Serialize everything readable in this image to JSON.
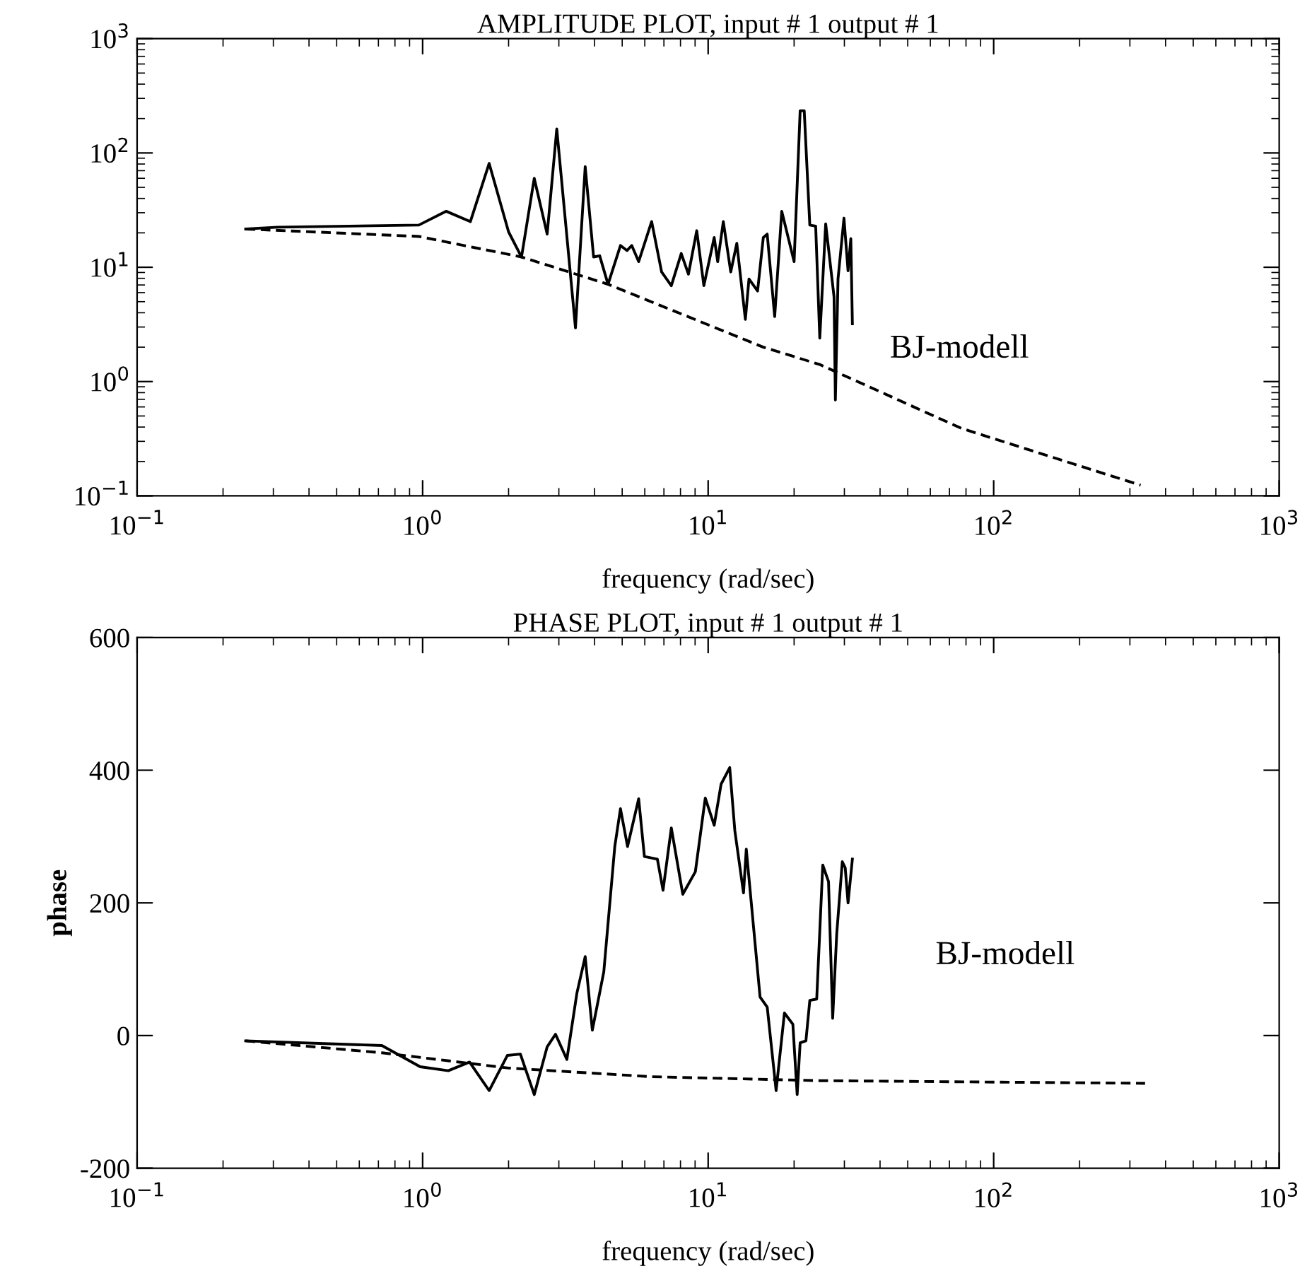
{
  "chart_data": [
    {
      "type": "line",
      "title": "AMPLITUDE PLOT, input # 1 output # 1",
      "xlabel": "frequency (rad/sec)",
      "log": "xy",
      "grid": false,
      "marker": "none",
      "xlim": [
        0.1,
        1000
      ],
      "xticks": [
        {
          "value": 0.1,
          "label": "10$^{−1}$"
        },
        {
          "value": 1,
          "label": "10$^{0}$"
        },
        {
          "value": 10,
          "label": "10$^{1}$"
        },
        {
          "value": 100,
          "label": "10$^{2}$"
        },
        {
          "value": 1000,
          "label": "10$^{3}$"
        }
      ],
      "ylim": [
        0.1,
        1000
      ],
      "yticks": [
        {
          "value": 0.1,
          "label": "10$^{−1}$"
        },
        {
          "value": 1,
          "label": "10$^{0}$"
        },
        {
          "value": 10,
          "label": "10$^{1}$"
        },
        {
          "value": 100,
          "label": "10$^{2}$"
        },
        {
          "value": 1000,
          "label": "10$^{3}$"
        }
      ],
      "annotations": [
        "BJ-modell"
      ],
      "series": [
        {
          "color": "#000000",
          "line_style": "solid",
          "x": [
            0.24,
            0.31,
            0.97,
            1.21,
            1.47,
            1.71,
            2.0,
            2.22,
            2.46,
            2.73,
            2.95,
            3.43,
            3.71,
            3.97,
            4.17,
            4.46,
            4.93,
            5.2,
            5.4,
            5.71,
            6.34,
            6.87,
            7.43,
            8.05,
            8.53,
            9.12,
            9.66,
            10.5,
            10.8,
            11.3,
            12.0,
            12.6,
            13.5,
            13.9,
            14.9,
            15.6,
            16.1,
            17.1,
            18.1,
            20.0,
            21.0,
            21.7,
            22.7,
            23.8,
            24.6,
            25.8,
            27.6,
            27.9,
            28.5,
            29.9,
            30.9,
            31.6,
            32.0
          ],
          "values": [
            21.6,
            22.4,
            23.4,
            30.9,
            25.1,
            81,
            20.4,
            12.3,
            60,
            19.5,
            162,
            2.95,
            76,
            12.3,
            12.6,
            7.1,
            15.5,
            14.0,
            15.5,
            11.2,
            25.1,
            9.1,
            6.9,
            13.2,
            8.7,
            20.9,
            6.9,
            18.2,
            11.2,
            25.1,
            9.1,
            16.2,
            3.5,
            7.9,
            6.2,
            18.2,
            19.5,
            3.7,
            30.9,
            11.2,
            234,
            234,
            23.4,
            22.9,
            2.4,
            24.0,
            5.5,
            0.69,
            7.9,
            26.9,
            9.3,
            17.8,
            3.2
          ]
        },
        {
          "color": "#000000",
          "line_style": "dashed",
          "x": [
            0.24,
            0.97,
            2.22,
            4.46,
            15.6,
            24.6,
            77,
            327
          ],
          "values": [
            21.6,
            18.6,
            12.3,
            7.1,
            2.0,
            1.41,
            0.39,
            0.124
          ]
        }
      ]
    },
    {
      "type": "line",
      "title": "PHASE PLOT, input # 1 output # 1",
      "xlabel": "frequency (rad/sec)",
      "ylabel": "phase",
      "log": "x",
      "grid": false,
      "marker": "none",
      "xlim": [
        0.1,
        1000
      ],
      "xticks": [
        {
          "value": 0.1,
          "label": "10$^{−1}$"
        },
        {
          "value": 1,
          "label": "10$^{0}$"
        },
        {
          "value": 10,
          "label": "10$^{1}$"
        },
        {
          "value": 100,
          "label": "10$^{2}$"
        },
        {
          "value": 1000,
          "label": "10$^{3}$"
        }
      ],
      "ylim": [
        -200,
        600
      ],
      "yticks": [
        -200,
        0,
        200,
        400,
        600
      ],
      "annotations": [
        "BJ-modell"
      ],
      "series": [
        {
          "color": "#000000",
          "line_style": "solid",
          "x": [
            0.24,
            0.72,
            0.98,
            1.23,
            1.46,
            1.71,
            1.98,
            2.2,
            2.46,
            2.73,
            2.92,
            3.2,
            3.47,
            3.71,
            3.93,
            4.31,
            4.71,
            4.93,
            5.22,
            5.71,
            5.98,
            6.64,
            6.95,
            7.43,
            8.15,
            9.02,
            9.77,
            10.5,
            11.1,
            11.9,
            12.4,
            13.3,
            13.6,
            15.2,
            16.1,
            17.3,
            18.5,
            19.8,
            20.5,
            21.0,
            22.0,
            22.7,
            24.0,
            25.2,
            26.4,
            27.3,
            28.2,
            29.5,
            30.2,
            30.9,
            32.0
          ],
          "values": [
            -8,
            -15,
            -47,
            -53,
            -40,
            -83,
            -30,
            -28,
            -89,
            -17,
            2,
            -36,
            64,
            119,
            8,
            96,
            285,
            342,
            285,
            357,
            270,
            266,
            219,
            313,
            213,
            247,
            358,
            317,
            379,
            404,
            309,
            215,
            281,
            58,
            43,
            -83,
            34,
            17,
            -89,
            -11,
            -8,
            53,
            55,
            257,
            232,
            26,
            153,
            262,
            253,
            200,
            266
          ]
        },
        {
          "color": "#000000",
          "line_style": "dashed",
          "x": [
            0.24,
            0.72,
            2.0,
            6.3,
            24.6,
            339
          ],
          "values": [
            -8,
            -26,
            -49,
            -62,
            -68,
            -72
          ]
        }
      ]
    }
  ]
}
